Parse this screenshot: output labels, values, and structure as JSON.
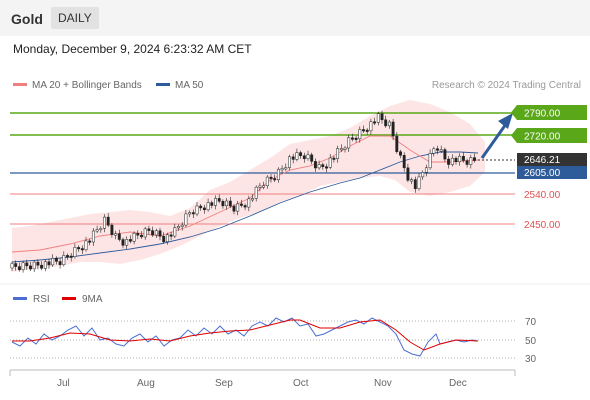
{
  "header": {
    "asset": "Gold",
    "period": "DAILY"
  },
  "datetime": "Monday, December 9, 2024 6:23:32 AM CET",
  "legend": {
    "ma20": {
      "label": "MA 20 + Bollinger Bands",
      "color": "#f08080"
    },
    "ma50": {
      "label": "MA 50",
      "color": "#2e5c9a"
    }
  },
  "credit": "Research © 2024 Trading Central",
  "levels": {
    "r2": {
      "label": "2790.00",
      "value": 2790,
      "color": "#5aa81a"
    },
    "r1": {
      "label": "2720.00",
      "value": 2720,
      "color": "#5aa81a"
    },
    "last": {
      "label": "2646.21",
      "value": 2646.21,
      "color": "#333333"
    },
    "pivot": {
      "label": "2605.00",
      "value": 2605,
      "color": "#2e5c9a"
    },
    "s1": {
      "label": "2540.00",
      "value": 2540,
      "color": "#e05050"
    },
    "s2": {
      "label": "2450.00",
      "value": 2450,
      "color": "#e05050"
    }
  },
  "rsi_legend": {
    "rsi": {
      "label": "RSI",
      "color": "#4a6fd0"
    },
    "ma9": {
      "label": "9MA",
      "color": "#e00000"
    }
  },
  "rsi_levels": [
    "70",
    "50",
    "30"
  ],
  "x_axis": [
    "Jul",
    "Aug",
    "Sep",
    "Oct",
    "Nov",
    "Dec"
  ]
}
